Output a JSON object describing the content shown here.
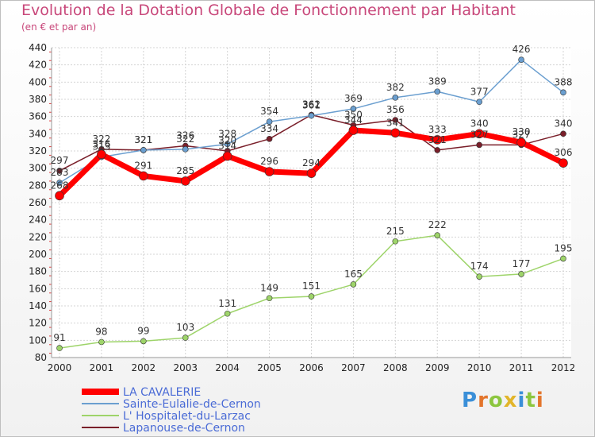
{
  "title": "Evolution de la Dotation Globale de Fonctionnement par Habitant",
  "subtitle": "(en € et par an)",
  "logo": {
    "text": "Proxiti",
    "colors": [
      "#3a8fd8",
      "#e3752c",
      "#8cc63f",
      "#e2b52a",
      "#3a8fd8",
      "#8cc63f",
      "#e3752c"
    ]
  },
  "chart_data": {
    "type": "line",
    "x": [
      "2000",
      "2001",
      "2002",
      "2003",
      "2004",
      "2005",
      "2006",
      "2007",
      "2008",
      "2009",
      "2010",
      "2011",
      "2012"
    ],
    "ylim": [
      80,
      440
    ],
    "yticks": [
      80,
      100,
      120,
      140,
      160,
      180,
      200,
      220,
      240,
      260,
      280,
      300,
      320,
      340,
      360,
      380,
      400,
      420,
      440
    ],
    "grid": true,
    "legend": "bottom-left",
    "series": [
      {
        "name": "Lapanouse-de-Cernon",
        "color": "#7a1f2a",
        "width": 1.5,
        "values": [
          297,
          322,
          321,
          326,
          320,
          334,
          362,
          350,
          356,
          321,
          327,
          327,
          340
        ],
        "labels": [
          "297",
          "322",
          "321",
          "326",
          "320",
          "334",
          "362",
          "350",
          "356",
          "321",
          "327",
          "327",
          "340"
        ]
      },
      {
        "name": "L' Hospitalet-du-Larzac",
        "color": "#9ed46a",
        "width": 1.5,
        "values": [
          91,
          98,
          99,
          103,
          131,
          149,
          151,
          165,
          215,
          222,
          174,
          177,
          195
        ],
        "labels": [
          "91",
          "98",
          "99",
          "103",
          "131",
          "149",
          "151",
          "165",
          "215",
          "222",
          "174",
          "177",
          "195"
        ]
      },
      {
        "name": "Sainte-Eulalie-de-Cernon",
        "color": "#6b9fd0",
        "width": 1.5,
        "values": [
          283,
          313,
          321,
          322,
          328,
          354,
          361,
          369,
          382,
          389,
          377,
          426,
          388
        ],
        "labels": [
          "283",
          "313",
          "321",
          "322",
          "328",
          "354",
          "361",
          "369",
          "382",
          "389",
          "377",
          "426",
          "388"
        ]
      },
      {
        "name": "LA CAVALERIE",
        "color": "#ff0000",
        "width": 7,
        "values": [
          268,
          316,
          291,
          285,
          314,
          296,
          294,
          344,
          341,
          333,
          340,
          330,
          306
        ],
        "labels": [
          "268",
          "316",
          "291",
          "285",
          "314",
          "296",
          "294",
          "344",
          "341",
          "333",
          "340",
          "330",
          "306"
        ]
      }
    ],
    "legend_order": [
      "LA CAVALERIE",
      "Sainte-Eulalie-de-Cernon",
      "L' Hospitalet-du-Larzac",
      "Lapanouse-de-Cernon"
    ]
  }
}
